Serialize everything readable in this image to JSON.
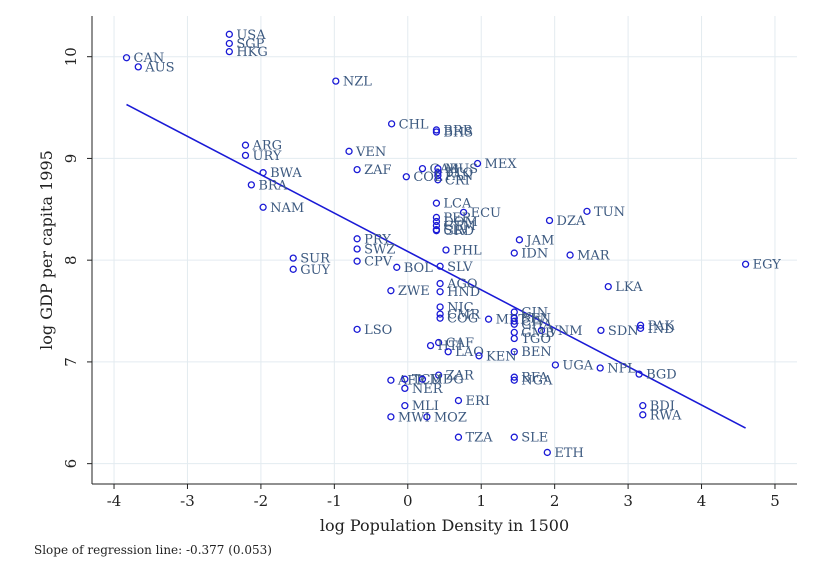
{
  "chart_data": {
    "type": "scatter",
    "xlabel": "log Population Density in 1500",
    "ylabel": "log GDP per capita 1995",
    "xlim": [
      -4.3,
      5.3
    ],
    "ylim": [
      5.8,
      10.4
    ],
    "x_ticks": [
      -4,
      -3,
      -2,
      -1,
      0,
      1,
      2,
      3,
      4,
      5
    ],
    "y_ticks": [
      6,
      7,
      8,
      9,
      10
    ],
    "grid": true,
    "regression_line": {
      "x": [
        -3.83,
        4.6
      ],
      "y": [
        9.53,
        6.35
      ]
    },
    "note": "Slope of regression line:  -0.377 (0.053)",
    "points": [
      {
        "label": "USA",
        "x": -2.43,
        "y": 10.22
      },
      {
        "label": "SGP",
        "x": -2.43,
        "y": 10.13
      },
      {
        "label": "HKG",
        "x": -2.43,
        "y": 10.05
      },
      {
        "label": "CAN",
        "x": -3.83,
        "y": 9.99
      },
      {
        "label": "AUS",
        "x": -3.67,
        "y": 9.9
      },
      {
        "label": "NZL",
        "x": -0.98,
        "y": 9.76
      },
      {
        "label": "CHL",
        "x": -0.22,
        "y": 9.34
      },
      {
        "label": "BRB",
        "x": 0.39,
        "y": 9.28
      },
      {
        "label": "BHS",
        "x": 0.39,
        "y": 9.26
      },
      {
        "label": "ARG",
        "x": -2.21,
        "y": 9.13
      },
      {
        "label": "URY",
        "x": -2.21,
        "y": 9.03
      },
      {
        "label": "VEN",
        "x": -0.8,
        "y": 9.07
      },
      {
        "label": "MEX",
        "x": 0.95,
        "y": 8.95
      },
      {
        "label": "ZAF",
        "x": -0.69,
        "y": 8.89
      },
      {
        "label": "GAB",
        "x": 0.2,
        "y": 8.9
      },
      {
        "label": "MUS",
        "x": 0.41,
        "y": 8.9
      },
      {
        "label": "TTO",
        "x": 0.41,
        "y": 8.86
      },
      {
        "label": "PAN",
        "x": 0.41,
        "y": 8.83
      },
      {
        "label": "CRI",
        "x": 0.41,
        "y": 8.79
      },
      {
        "label": "COL",
        "x": -0.02,
        "y": 8.82
      },
      {
        "label": "BWA",
        "x": -1.97,
        "y": 8.86
      },
      {
        "label": "BRA",
        "x": -2.13,
        "y": 8.74
      },
      {
        "label": "LCA",
        "x": 0.39,
        "y": 8.56
      },
      {
        "label": "NAM",
        "x": -1.97,
        "y": 8.52
      },
      {
        "label": "TUN",
        "x": 2.44,
        "y": 8.48
      },
      {
        "label": "ECU",
        "x": 0.76,
        "y": 8.47
      },
      {
        "label": "DZA",
        "x": 1.93,
        "y": 8.39
      },
      {
        "label": "PER",
        "x": 0.39,
        "y": 8.42
      },
      {
        "label": "DOM",
        "x": 0.39,
        "y": 8.38
      },
      {
        "label": "GTM",
        "x": 0.39,
        "y": 8.34
      },
      {
        "label": "SLV",
        "x": 0.39,
        "y": 8.3
      },
      {
        "label": "GRD",
        "x": 0.39,
        "y": 8.29
      },
      {
        "label": "JAM",
        "x": 1.52,
        "y": 8.2
      },
      {
        "label": "PRY",
        "x": -0.69,
        "y": 8.21
      },
      {
        "label": "SWZ",
        "x": -0.69,
        "y": 8.11
      },
      {
        "label": "PHL",
        "x": 0.52,
        "y": 8.1
      },
      {
        "label": "IDN",
        "x": 1.45,
        "y": 8.07
      },
      {
        "label": "MAR",
        "x": 2.21,
        "y": 8.05
      },
      {
        "label": "SUR",
        "x": -1.56,
        "y": 8.02
      },
      {
        "label": "CPV",
        "x": -0.69,
        "y": 7.99
      },
      {
        "label": "BOL",
        "x": -0.15,
        "y": 7.93
      },
      {
        "label": "SLV",
        "x": 0.44,
        "y": 7.94
      },
      {
        "label": "GUY",
        "x": -1.56,
        "y": 7.91
      },
      {
        "label": "EGY",
        "x": 4.6,
        "y": 7.96
      },
      {
        "label": "AGO",
        "x": 0.44,
        "y": 7.77
      },
      {
        "label": "LKA",
        "x": 2.73,
        "y": 7.74
      },
      {
        "label": "ZWE",
        "x": -0.23,
        "y": 7.7
      },
      {
        "label": "HND",
        "x": 0.44,
        "y": 7.69
      },
      {
        "label": "NIC",
        "x": 0.44,
        "y": 7.54
      },
      {
        "label": "CMR",
        "x": 0.44,
        "y": 7.47
      },
      {
        "label": "GIN",
        "x": 1.45,
        "y": 7.49
      },
      {
        "label": "COG",
        "x": 0.44,
        "y": 7.43
      },
      {
        "label": "MRT",
        "x": 1.1,
        "y": 7.42
      },
      {
        "label": "SEN",
        "x": 1.45,
        "y": 7.43
      },
      {
        "label": "CIV",
        "x": 1.45,
        "y": 7.4
      },
      {
        "label": "GHA",
        "x": 1.45,
        "y": 7.37
      },
      {
        "label": "VNM",
        "x": 1.82,
        "y": 7.31
      },
      {
        "label": "GMB",
        "x": 1.45,
        "y": 7.29
      },
      {
        "label": "TGO",
        "x": 1.45,
        "y": 7.23
      },
      {
        "label": "SDN",
        "x": 2.63,
        "y": 7.31
      },
      {
        "label": "PAK",
        "x": 3.17,
        "y": 7.36
      },
      {
        "label": "IND",
        "x": 3.17,
        "y": 7.33
      },
      {
        "label": "LSO",
        "x": -0.69,
        "y": 7.32
      },
      {
        "label": "CAF",
        "x": 0.42,
        "y": 7.19
      },
      {
        "label": "HTI",
        "x": 0.31,
        "y": 7.16
      },
      {
        "label": "LAO",
        "x": 0.55,
        "y": 7.1
      },
      {
        "label": "BEN",
        "x": 1.45,
        "y": 7.1
      },
      {
        "label": "KEN",
        "x": 0.97,
        "y": 7.06
      },
      {
        "label": "UGA",
        "x": 2.01,
        "y": 6.97
      },
      {
        "label": "NPL",
        "x": 2.62,
        "y": 6.94
      },
      {
        "label": "BGD",
        "x": 3.15,
        "y": 6.88
      },
      {
        "label": "ZAR",
        "x": 0.42,
        "y": 6.87
      },
      {
        "label": "BFA",
        "x": 1.45,
        "y": 6.85
      },
      {
        "label": "NGA",
        "x": 1.45,
        "y": 6.82
      },
      {
        "label": "AFR",
        "x": -0.23,
        "y": 6.82
      },
      {
        "label": "TCD",
        "x": -0.04,
        "y": 6.83
      },
      {
        "label": "MDG",
        "x": 0.2,
        "y": 6.83
      },
      {
        "label": "NER",
        "x": -0.04,
        "y": 6.74
      },
      {
        "label": "ERI",
        "x": 0.69,
        "y": 6.62
      },
      {
        "label": "MLI",
        "x": -0.04,
        "y": 6.57
      },
      {
        "label": "BDI",
        "x": 3.2,
        "y": 6.57
      },
      {
        "label": "RWA",
        "x": 3.2,
        "y": 6.48
      },
      {
        "label": "MWI",
        "x": -0.23,
        "y": 6.46
      },
      {
        "label": "MOZ",
        "x": 0.26,
        "y": 6.46
      },
      {
        "label": "TZA",
        "x": 0.69,
        "y": 6.26
      },
      {
        "label": "SLE",
        "x": 1.45,
        "y": 6.26
      },
      {
        "label": "ETH",
        "x": 1.9,
        "y": 6.11
      }
    ]
  }
}
